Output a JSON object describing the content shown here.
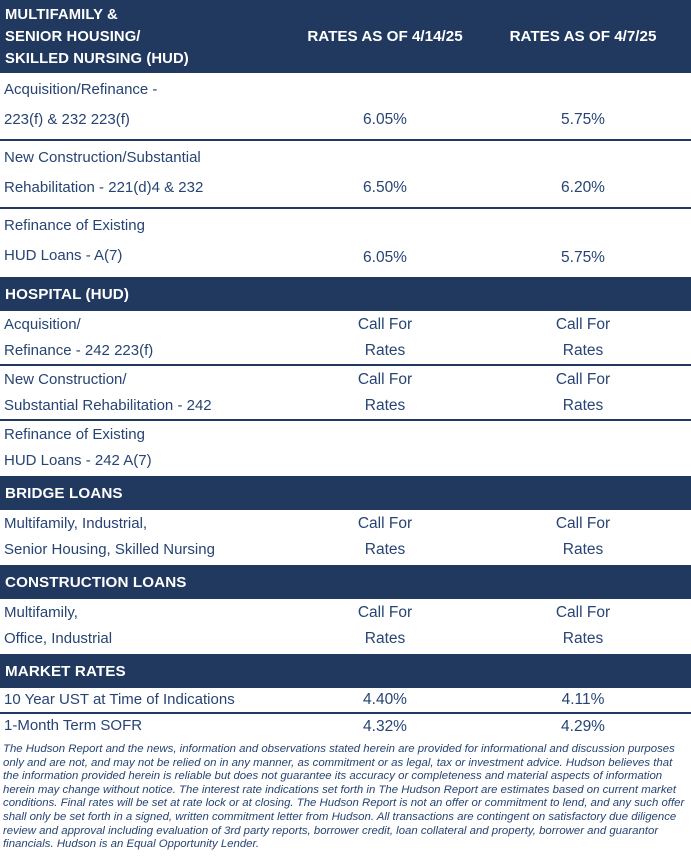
{
  "colors": {
    "navy": "#21395F",
    "text": "#274472",
    "header_text": "#FFFFFF",
    "background": "#FFFFFF"
  },
  "table": {
    "header": {
      "title_lines": [
        "MULTIFAMILY &",
        "SENIOR HOUSING/",
        "SKILLED NURSING (HUD)"
      ],
      "rate_col_1": "RATES AS OF 4/14/25",
      "rate_col_2": "RATES AS OF 4/7/25"
    },
    "sections": [
      {
        "title": null,
        "rows": [
          {
            "label_lines": [
              "Acquisition/Refinance -",
              "223(f) & 232 223(f)"
            ],
            "values": [
              [
                "6.05%"
              ],
              [
                "5.75%"
              ]
            ]
          },
          {
            "label_lines": [
              "New Construction/Substantial",
              "Rehabilitation - 221(d)4 & 232"
            ],
            "values": [
              [
                "6.50%"
              ],
              [
                "6.20%"
              ]
            ]
          },
          {
            "label_lines": [
              "Refinance of Existing",
              "HUD Loans - A(7)"
            ],
            "values": [
              [
                "6.05%"
              ],
              [
                "5.75%"
              ]
            ]
          }
        ]
      },
      {
        "title": "HOSPITAL (HUD)",
        "rows": [
          {
            "label_lines": [
              "Acquisition/",
              "Refinance - 242 223(f)"
            ],
            "values": [
              [
                "Call For",
                "Rates"
              ],
              [
                "Call For",
                "Rates"
              ]
            ]
          },
          {
            "label_lines": [
              "New Construction/",
              "Substantial Rehabilitation - 242"
            ],
            "values": [
              [
                "Call For",
                "Rates"
              ],
              [
                "Call For",
                "Rates"
              ]
            ]
          },
          {
            "label_lines": [
              "Refinance of Existing",
              "HUD Loans - 242 A(7)"
            ],
            "values": [
              [],
              []
            ]
          }
        ]
      },
      {
        "title": "BRIDGE LOANS",
        "rows": [
          {
            "label_lines": [
              "Multifamily, Industrial,",
              "Senior Housing, Skilled Nursing"
            ],
            "values": [
              [
                "Call For",
                "Rates"
              ],
              [
                "Call For",
                "Rates"
              ]
            ]
          }
        ]
      },
      {
        "title": "CONSTRUCTION LOANS",
        "rows": [
          {
            "label_lines": [
              "Multifamily,",
              "Office, Industrial"
            ],
            "values": [
              [
                "Call For",
                "Rates"
              ],
              [
                "Call For",
                "Rates"
              ]
            ]
          }
        ]
      },
      {
        "title": "MARKET RATES",
        "rows": [
          {
            "label_lines": [
              "10 Year UST at Time of Indications"
            ],
            "values": [
              [
                "4.40%"
              ],
              [
                "4.11%"
              ]
            ]
          },
          {
            "label_lines": [
              "1-Month Term SOFR"
            ],
            "values": [
              [
                "4.32%"
              ],
              [
                "4.29%"
              ]
            ]
          }
        ]
      }
    ]
  },
  "disclaimer": "The Hudson Report and the news, information and observations stated herein are provided for informational and discussion purposes only and are not, and may not be relied on in any manner, as commitment or as legal, tax or investment advice. Hudson believes that the information provided herein is reliable but does not guarantee its accuracy or completeness and material aspects of information herein may change without notice. The interest rate indications set forth in The Hudson Report are estimates based on current market conditions. Final rates will be set at rate lock or at closing. The Hudson Report is not an offer or commitment to lend, and any such offer shall only be set forth in a signed, written commitment letter from Hudson. All transactions are contingent on satisfactory due diligence review and approval including evaluation of 3rd party reports, borrower credit, loan collateral and property, borrower and guarantor financials. Hudson is an Equal Opportunity Lender."
}
